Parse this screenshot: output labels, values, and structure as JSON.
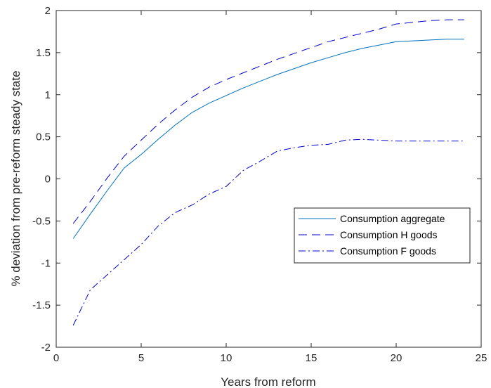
{
  "chart_data": {
    "type": "line",
    "title": "",
    "xlabel": "Years from reform",
    "ylabel": "% deviation from pre-reform steady state",
    "xlim": [
      0,
      25
    ],
    "ylim": [
      -2,
      2
    ],
    "xticks": [
      0,
      5,
      10,
      15,
      20,
      25
    ],
    "yticks": [
      -2,
      -1.5,
      -1,
      -0.5,
      0,
      0.5,
      1,
      1.5,
      2
    ],
    "xtick_labels": [
      "0",
      "5",
      "10",
      "15",
      "20",
      "25"
    ],
    "ytick_labels": [
      "-2",
      "-1.5",
      "-1",
      "-0.5",
      "0",
      "0.5",
      "1",
      "1.5",
      "2"
    ],
    "grid": false,
    "legend_position": "right",
    "x": [
      1,
      2,
      3,
      4,
      5,
      6,
      7,
      8,
      9,
      10,
      11,
      12,
      13,
      14,
      15,
      16,
      17,
      18,
      19,
      20,
      21,
      22,
      23,
      24
    ],
    "series": [
      {
        "name": "Consumption aggregate",
        "style": "solid",
        "color": "#0072BD",
        "values": [
          -0.71,
          -0.42,
          -0.14,
          0.13,
          0.29,
          0.47,
          0.64,
          0.79,
          0.9,
          0.99,
          1.08,
          1.16,
          1.24,
          1.31,
          1.38,
          1.44,
          1.5,
          1.55,
          1.59,
          1.63,
          1.64,
          1.65,
          1.66,
          1.66
        ]
      },
      {
        "name": "Consumption H goods",
        "style": "dashed",
        "color": "#0000CC",
        "values": [
          -0.53,
          -0.27,
          0.01,
          0.27,
          0.46,
          0.65,
          0.82,
          0.97,
          1.09,
          1.18,
          1.26,
          1.34,
          1.42,
          1.49,
          1.56,
          1.63,
          1.68,
          1.73,
          1.78,
          1.84,
          1.86,
          1.88,
          1.89,
          1.89
        ]
      },
      {
        "name": "Consumption F goods",
        "style": "dashdot",
        "color": "#0000CC",
        "values": [
          -1.74,
          -1.32,
          -1.14,
          -0.96,
          -0.78,
          -0.56,
          -0.4,
          -0.31,
          -0.18,
          -0.09,
          0.1,
          0.21,
          0.33,
          0.37,
          0.4,
          0.41,
          0.46,
          0.47,
          0.46,
          0.45,
          0.45,
          0.45,
          0.45,
          0.45
        ]
      }
    ]
  }
}
